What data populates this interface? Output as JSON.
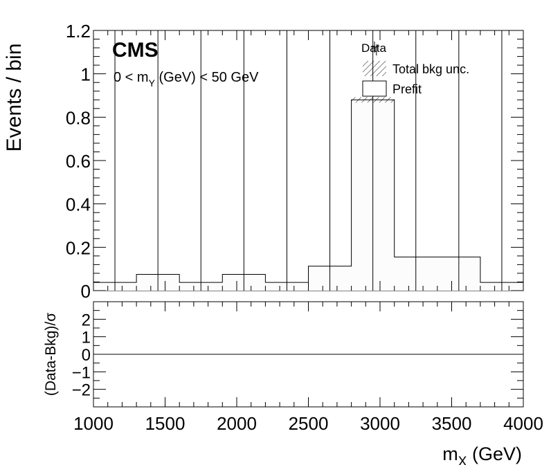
{
  "chart_data": [
    {
      "panel": "main",
      "type": "histogram",
      "experiment_label": "CMS",
      "region_label_parts": [
        "0 < m",
        "Y",
        " (GeV) < 50 GeV"
      ],
      "xlabel_parts": [
        "m",
        "X",
        " (GeV)"
      ],
      "ylabel": "Events / bin",
      "xlim": [
        1000,
        4000
      ],
      "ylim": [
        0,
        1.2
      ],
      "yticks": [
        0,
        0.2,
        0.4,
        0.6,
        0.8,
        1,
        1.2
      ],
      "ytick_labels": [
        "0",
        "0.2",
        "0.4",
        "0.6",
        "0.8",
        "1",
        "1.2"
      ],
      "bin_edges": [
        1000,
        1150,
        1300,
        1450,
        1600,
        1750,
        1900,
        2050,
        2200,
        2350,
        2500,
        2650,
        2800,
        2950,
        3100,
        3250,
        3400,
        3550,
        3700,
        3850,
        4000
      ],
      "prefit_values": [
        0.038,
        0.038,
        0.075,
        0.075,
        0.038,
        0.038,
        0.075,
        0.075,
        0.038,
        0.038,
        0.113,
        0.113,
        0.88,
        0.88,
        0.155,
        0.155,
        0.155,
        0.155,
        0.038,
        0.038
      ],
      "data_bins_with_error_line": [
        1150,
        1450,
        1750,
        2050,
        2350,
        2650,
        2950,
        3250,
        3550,
        3850
      ],
      "data_point": {
        "x": 2975,
        "y": 1.11
      },
      "legend": {
        "position": "top-right",
        "entries": [
          {
            "label": "Data",
            "style": "marker"
          },
          {
            "label": "Total bkg unc.",
            "style": "hatched"
          },
          {
            "label": "Prefit",
            "style": "box"
          }
        ]
      }
    },
    {
      "panel": "ratio",
      "type": "line",
      "ylabel": "(Data-Bkg)/σ",
      "ylim": [
        -3,
        3
      ],
      "ytick_labels": [
        "2",
        "1",
        "0",
        "−1",
        "−2"
      ],
      "yticks": [
        2,
        1,
        0,
        -1,
        -2
      ],
      "xticks": [
        1000,
        1500,
        2000,
        2500,
        3000,
        3500,
        4000
      ],
      "xtick_labels": [
        "1000",
        "1500",
        "2000",
        "2500",
        "3000",
        "3500",
        "4000"
      ],
      "reference_line_y": 0
    }
  ]
}
